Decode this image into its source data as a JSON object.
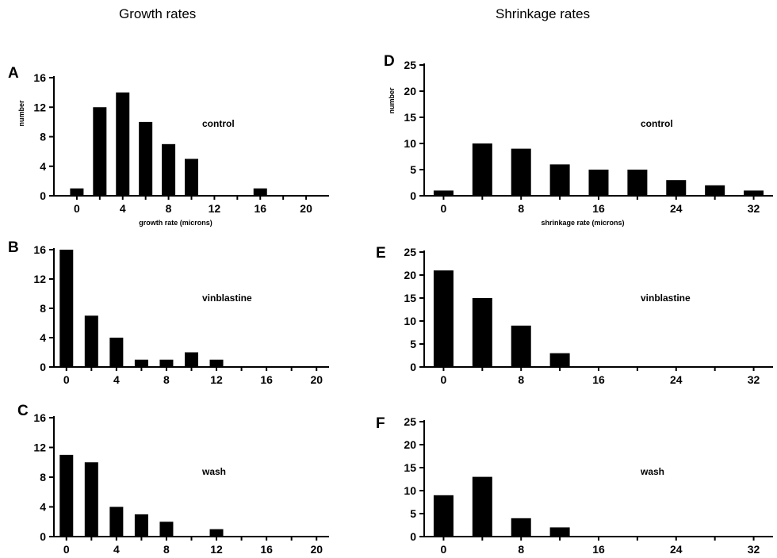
{
  "titles": {
    "left": "Growth rates",
    "right": "Shrinkage rates"
  },
  "chart_data": [
    {
      "panel": "A",
      "type": "bar",
      "condition": "control",
      "xlabel": "growth rate (microns)",
      "ylabel": "number",
      "xlim": [
        -2,
        22
      ],
      "ylim": [
        0,
        16
      ],
      "xticks": [
        0,
        4,
        8,
        12,
        16,
        20
      ],
      "yticks": [
        0,
        4,
        8,
        12,
        16
      ],
      "x": [
        0,
        2,
        4,
        6,
        8,
        10,
        16
      ],
      "values": [
        1,
        12,
        14,
        10,
        7,
        5,
        1
      ]
    },
    {
      "panel": "B",
      "type": "bar",
      "condition": "vinblastine",
      "xlabel": "",
      "ylabel": "",
      "xlim": [
        -1,
        21
      ],
      "ylim": [
        0,
        16
      ],
      "xticks": [
        0,
        4,
        8,
        12,
        16,
        20
      ],
      "yticks": [
        0,
        4,
        8,
        12,
        16
      ],
      "x": [
        0,
        2,
        4,
        6,
        8,
        10,
        12
      ],
      "values": [
        16,
        7,
        4,
        1,
        1,
        2,
        1
      ]
    },
    {
      "panel": "C",
      "type": "bar",
      "condition": "wash",
      "xlabel": "",
      "ylabel": "",
      "xlim": [
        -1,
        21
      ],
      "ylim": [
        0,
        16
      ],
      "xticks": [
        0,
        4,
        8,
        12,
        16,
        20
      ],
      "yticks": [
        0,
        4,
        8,
        12,
        16
      ],
      "x": [
        0,
        2,
        4,
        6,
        8,
        12
      ],
      "values": [
        11,
        10,
        4,
        3,
        2,
        1
      ]
    },
    {
      "panel": "D",
      "type": "bar",
      "condition": "control",
      "xlabel": "shrinkage rate (microns)",
      "ylabel": "number",
      "xlim": [
        -2,
        34
      ],
      "ylim": [
        0,
        25
      ],
      "xticks": [
        0,
        8,
        16,
        24,
        32
      ],
      "yticks": [
        0,
        5,
        10,
        15,
        20,
        25
      ],
      "x": [
        0,
        4,
        8,
        12,
        16,
        20,
        24,
        28,
        32
      ],
      "values": [
        1,
        10,
        9,
        6,
        5,
        5,
        3,
        2,
        1
      ]
    },
    {
      "panel": "E",
      "type": "bar",
      "condition": "vinblastine",
      "xlabel": "",
      "ylabel": "",
      "xlim": [
        -2,
        34
      ],
      "ylim": [
        0,
        25
      ],
      "xticks": [
        0,
        8,
        16,
        24,
        32
      ],
      "yticks": [
        0,
        5,
        10,
        15,
        20,
        25
      ],
      "x": [
        0,
        4,
        8,
        12
      ],
      "values": [
        21,
        15,
        9,
        3
      ]
    },
    {
      "panel": "F",
      "type": "bar",
      "condition": "wash",
      "xlabel": "",
      "ylabel": "",
      "xlim": [
        -2,
        34
      ],
      "ylim": [
        0,
        25
      ],
      "xticks": [
        0,
        8,
        16,
        24,
        32
      ],
      "yticks": [
        0,
        5,
        10,
        15,
        20,
        25
      ],
      "x": [
        0,
        4,
        8,
        12
      ],
      "values": [
        9,
        13,
        4,
        2
      ]
    }
  ]
}
